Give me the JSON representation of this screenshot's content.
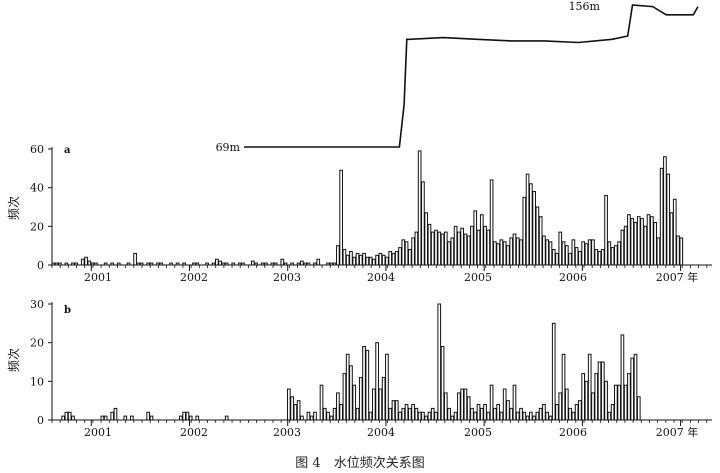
{
  "caption": "图 4　水位频次关系图",
  "chart_data": [
    {
      "id": "water_level",
      "type": "line",
      "start_label": "69m",
      "end_label": "156m",
      "x": [
        2000.55,
        2002.85,
        2002.92,
        2002.96,
        2003.0,
        2003.5,
        2004.0,
        2004.5,
        2005.0,
        2005.5,
        2006.0,
        2006.23,
        2006.3,
        2006.6,
        2006.8,
        2007.2,
        2007.27
      ],
      "y": [
        69,
        69,
        95,
        135,
        135,
        136,
        135,
        134,
        134,
        133,
        135,
        137,
        156,
        155,
        150,
        150,
        155
      ]
    },
    {
      "id": "a",
      "type": "bar",
      "panel_label": "a",
      "ylabel": "频次",
      "ylim": [
        0,
        60
      ],
      "yticks": [
        "0",
        "20",
        "40",
        "60"
      ],
      "xticks": [
        "2001",
        "2002",
        "2003",
        "2004",
        "2005",
        "2006",
        "2007 年"
      ],
      "x_start": 2000.6,
      "step": 0.0333,
      "values": [
        1,
        1,
        1,
        0,
        1,
        0,
        1,
        1,
        0,
        3,
        4,
        2,
        1,
        1,
        0,
        0,
        1,
        0,
        1,
        0,
        1,
        0,
        0,
        1,
        0,
        6,
        1,
        1,
        0,
        1,
        1,
        0,
        1,
        1,
        0,
        0,
        1,
        0,
        1,
        0,
        1,
        0,
        0,
        1,
        1,
        0,
        0,
        1,
        0,
        1,
        3,
        2,
        1,
        1,
        0,
        1,
        0,
        1,
        1,
        0,
        0,
        2,
        1,
        0,
        1,
        1,
        0,
        1,
        1,
        0,
        3,
        1,
        0,
        1,
        0,
        1,
        2,
        1,
        1,
        0,
        1,
        3,
        0,
        0,
        1,
        1,
        1,
        10,
        49,
        8,
        5,
        7,
        4,
        6,
        5,
        6,
        4,
        4,
        3,
        5,
        6,
        5,
        4,
        7,
        6,
        7,
        9,
        13,
        12,
        8,
        14,
        17,
        59,
        43,
        27,
        21,
        17,
        18,
        17,
        16,
        17,
        12,
        14,
        20,
        17,
        19,
        16,
        15,
        20,
        28,
        18,
        26,
        20,
        18,
        44,
        12,
        11,
        13,
        12,
        10,
        14,
        16,
        14,
        13,
        35,
        47,
        42,
        38,
        30,
        25,
        15,
        13,
        12,
        8,
        6,
        17,
        12,
        10,
        6,
        13,
        9,
        7,
        12,
        11,
        13,
        13,
        8,
        7,
        8,
        36,
        12,
        9,
        10,
        12,
        18,
        20,
        26,
        24,
        22,
        25,
        24,
        20,
        26,
        25,
        22,
        14,
        50,
        56,
        47,
        27,
        34,
        15,
        14
      ]
    },
    {
      "id": "b",
      "type": "bar",
      "panel_label": "b",
      "ylabel": "频次",
      "ylim": [
        0,
        30
      ],
      "yticks": [
        "0",
        "10",
        "20",
        "30"
      ],
      "xticks": [
        "2001",
        "2002",
        "2003",
        "2004",
        "2005",
        "2006",
        "2007 年"
      ],
      "x_start": 2000.6,
      "step": 0.0333,
      "values": [
        0,
        0,
        0,
        1,
        2,
        2,
        1,
        0,
        0,
        0,
        0,
        0,
        0,
        0,
        0,
        1,
        1,
        0,
        2,
        3,
        0,
        0,
        1,
        0,
        1,
        0,
        0,
        0,
        0,
        2,
        1,
        0,
        0,
        0,
        0,
        0,
        0,
        0,
        0,
        1,
        2,
        2,
        1,
        0,
        1,
        0,
        0,
        0,
        0,
        0,
        0,
        0,
        0,
        1,
        0,
        0,
        0,
        0,
        0,
        0,
        0,
        0,
        0,
        0,
        0,
        0,
        0,
        0,
        0,
        0,
        0,
        0,
        8,
        6,
        4,
        5,
        1,
        0,
        2,
        1,
        2,
        0,
        9,
        3,
        2,
        1,
        3,
        7,
        4,
        12,
        17,
        14,
        9,
        3,
        11,
        19,
        18,
        2,
        8,
        20,
        8,
        11,
        17,
        3,
        5,
        5,
        2,
        3,
        4,
        3,
        4,
        3,
        2,
        2,
        1,
        2,
        3,
        2,
        30,
        19,
        7,
        3,
        1,
        2,
        7,
        8,
        8,
        6,
        3,
        2,
        4,
        3,
        4,
        2,
        9,
        3,
        4,
        2,
        8,
        5,
        3,
        9,
        2,
        3,
        2,
        1,
        2,
        1,
        2,
        3,
        4,
        2,
        1,
        25,
        4,
        7,
        17,
        8,
        3,
        2,
        4,
        5,
        12,
        10,
        17,
        7,
        12,
        15,
        15,
        10,
        2,
        4,
        9,
        9,
        22,
        9,
        12,
        16,
        17,
        6
      ]
    }
  ]
}
